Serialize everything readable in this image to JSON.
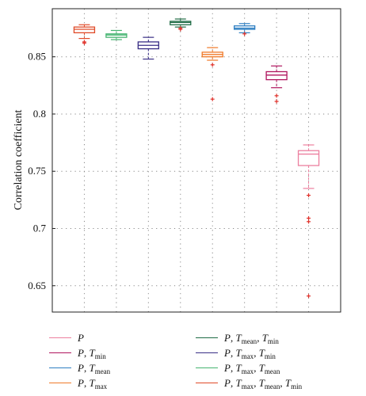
{
  "chart_data": {
    "type": "boxplot",
    "ylabel": "Correlation coefficient",
    "ylim": [
      0.627,
      0.892
    ],
    "yticks": [
      "0.65",
      "0.7",
      "0.75",
      "0.8",
      "0.85"
    ],
    "grid": true,
    "legend_position": "bottom",
    "series": [
      {
        "name": "P, Tmax, Tmean, Tmin",
        "color": "#e04a28",
        "whisker_low": 0.866,
        "q1": 0.871,
        "median": 0.874,
        "q3": 0.876,
        "whisker_high": 0.878,
        "outliers": [
          0.863,
          0.862
        ]
      },
      {
        "name": "P, Tmax, Tmean",
        "color": "#45b470",
        "whisker_low": 0.865,
        "q1": 0.867,
        "median": 0.869,
        "q3": 0.87,
        "whisker_high": 0.873,
        "outliers": []
      },
      {
        "name": "P, Tmax, Tmin",
        "color": "#3a2f86",
        "whisker_low": 0.848,
        "q1": 0.857,
        "median": 0.86,
        "q3": 0.863,
        "whisker_high": 0.867,
        "outliers": []
      },
      {
        "name": "P, Tmean, Tmin",
        "color": "#1f6b45",
        "whisker_low": 0.876,
        "q1": 0.878,
        "median": 0.88,
        "q3": 0.881,
        "whisker_high": 0.883,
        "outliers": [
          0.875,
          0.874
        ]
      },
      {
        "name": "P, Tmax",
        "color": "#f07a2a",
        "whisker_low": 0.847,
        "q1": 0.85,
        "median": 0.852,
        "q3": 0.854,
        "whisker_high": 0.858,
        "outliers": [
          0.843,
          0.813
        ]
      },
      {
        "name": "P, Tmean",
        "color": "#2e7fc2",
        "whisker_low": 0.871,
        "q1": 0.874,
        "median": 0.875,
        "q3": 0.877,
        "whisker_high": 0.879,
        "outliers": [
          0.87
        ]
      },
      {
        "name": "P, Tmin",
        "color": "#b0155e",
        "whisker_low": 0.823,
        "q1": 0.83,
        "median": 0.834,
        "q3": 0.837,
        "whisker_high": 0.842,
        "outliers": [
          0.816,
          0.811
        ]
      },
      {
        "name": "P",
        "color": "#ec7f9f",
        "whisker_low": 0.735,
        "q1": 0.755,
        "median": 0.765,
        "q3": 0.768,
        "whisker_high": 0.773,
        "outliers": [
          0.729,
          0.709,
          0.706,
          0.641
        ]
      }
    ]
  },
  "legend": {
    "left": [
      {
        "sym": "P",
        "sub": [],
        "color": "#ec7f9f"
      },
      {
        "sym": "P",
        "sub": [
          "min"
        ],
        "color": "#b0155e"
      },
      {
        "sym": "P",
        "sub": [
          "mean"
        ],
        "color": "#2e7fc2"
      },
      {
        "sym": "P",
        "sub": [
          "max"
        ],
        "color": "#f07a2a"
      }
    ],
    "right": [
      {
        "sym": "P",
        "sub": [
          "mean",
          "min"
        ],
        "color": "#1f6b45"
      },
      {
        "sym": "P",
        "sub": [
          "max",
          "min"
        ],
        "color": "#3a2f86"
      },
      {
        "sym": "P",
        "sub": [
          "max",
          "mean"
        ],
        "color": "#45b470"
      },
      {
        "sym": "P",
        "sub": [
          "max",
          "mean",
          "min"
        ],
        "color": "#e04a28"
      }
    ]
  }
}
